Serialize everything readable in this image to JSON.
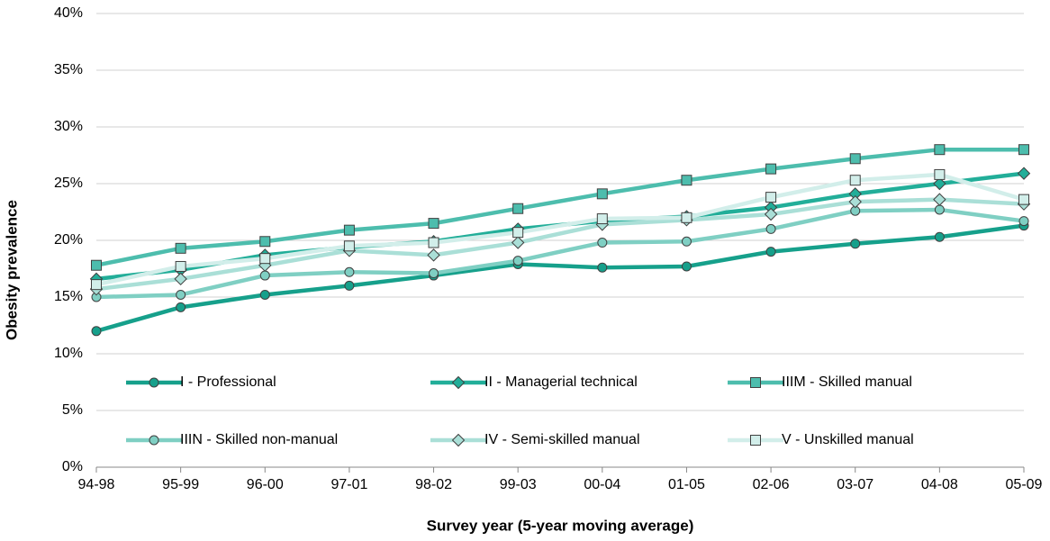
{
  "chart_data": {
    "type": "line",
    "y_label": "Obesity prevalence",
    "x_label": "Survey year (5-year moving average)",
    "categories": [
      "94-98",
      "95-99",
      "96-00",
      "97-01",
      "98-02",
      "99-03",
      "00-04",
      "01-05",
      "02-06",
      "03-07",
      "04-08",
      "05-09"
    ],
    "ylim": [
      0,
      40
    ],
    "yticks": [
      {
        "value": 0,
        "label": "0%"
      },
      {
        "value": 5,
        "label": "5%"
      },
      {
        "value": 10,
        "label": "10%"
      },
      {
        "value": 15,
        "label": "15%"
      },
      {
        "value": 20,
        "label": "20%"
      },
      {
        "value": 25,
        "label": "25%"
      },
      {
        "value": 30,
        "label": "30%"
      },
      {
        "value": 35,
        "label": "35%"
      },
      {
        "value": 40,
        "label": "40%"
      }
    ],
    "grid": true,
    "series": [
      {
        "name": "I - Professional",
        "color": "#16a08b",
        "marker": "circle",
        "values": [
          12.0,
          14.1,
          15.2,
          16.0,
          16.9,
          17.9,
          17.6,
          17.7,
          19.0,
          19.7,
          20.3,
          21.3
        ]
      },
      {
        "name": "II - Managerial technical",
        "color": "#22ae99",
        "marker": "diamond",
        "values": [
          16.6,
          17.4,
          18.7,
          19.4,
          19.9,
          21.0,
          21.7,
          22.1,
          22.9,
          24.1,
          25.0,
          25.9
        ]
      },
      {
        "name": "IIIM - Skilled manual",
        "color": "#4dbdad",
        "marker": "square",
        "values": [
          17.8,
          19.3,
          19.9,
          20.9,
          21.5,
          22.8,
          24.1,
          25.3,
          26.3,
          27.2,
          28.0,
          28.0
        ]
      },
      {
        "name": "IIIN - Skilled non-manual",
        "color": "#7fcfc3",
        "marker": "circle",
        "values": [
          15.0,
          15.2,
          16.9,
          17.2,
          17.1,
          18.2,
          19.8,
          19.9,
          21.0,
          22.6,
          22.7,
          21.7
        ]
      },
      {
        "name": "IV - Semi-skilled manual",
        "color": "#aadfd7",
        "marker": "diamond",
        "values": [
          15.7,
          16.6,
          17.8,
          19.1,
          18.7,
          19.8,
          21.4,
          21.8,
          22.3,
          23.4,
          23.6,
          23.2
        ]
      },
      {
        "name": "V - Unskilled manual",
        "color": "#d2eeea",
        "marker": "square",
        "values": [
          16.1,
          17.7,
          18.4,
          19.5,
          19.8,
          20.7,
          21.9,
          22.0,
          23.8,
          25.3,
          25.8,
          23.6
        ]
      }
    ]
  }
}
